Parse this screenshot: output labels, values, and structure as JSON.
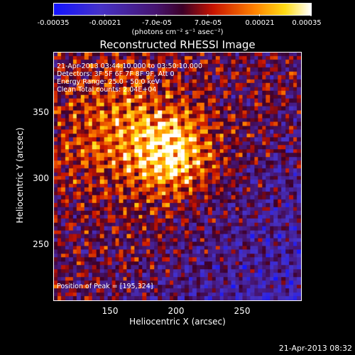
{
  "colorbar": {
    "tick_labels": [
      "-0.00035",
      "-0.00021",
      "-7.0e-05",
      "7.0e-05",
      "0.00021",
      "0.00035"
    ],
    "units": "(photons cm⁻² s⁻¹ asec⁻²)",
    "range": [
      -0.00035,
      0.00035
    ]
  },
  "title": "Reconstructed RHESSI Image",
  "info": {
    "time": "21-Apr-2013 03:44:10.000 to 03:50:10.000",
    "detectors": "Detectors: 3F 5F 6F 7F 8F 9F, Att 0",
    "energy": "Energy Range: 25.0 - 50.0 keV",
    "clean": "Clean     Total counts: 2.04E+04",
    "peak": "Position of Peak = [195,324]"
  },
  "axes": {
    "xlabel": "Heliocentric X (arcsec)",
    "ylabel": "Heliocentric Y (arcsec)",
    "xticks": [
      "150",
      "200",
      "250"
    ],
    "yticks": [
      "250",
      "300",
      "350"
    ],
    "xlim": [
      107,
      293
    ],
    "ylim": [
      207,
      393
    ]
  },
  "timestamp": "21-Apr-2013 08:32"
}
